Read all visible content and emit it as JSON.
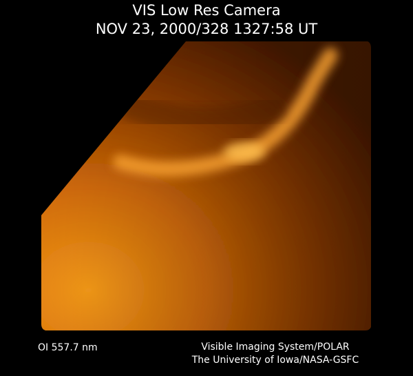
{
  "header": {
    "title": "VIS Low Res Camera",
    "timestamp": "NOV 23, 2000/328 1327:58 UT"
  },
  "footer": {
    "filter": "OI 557.7 nm",
    "credit_line_1": "Visible Imaging System/POLAR",
    "credit_line_2": "The University of Iowa/NASA-GSFC"
  }
}
